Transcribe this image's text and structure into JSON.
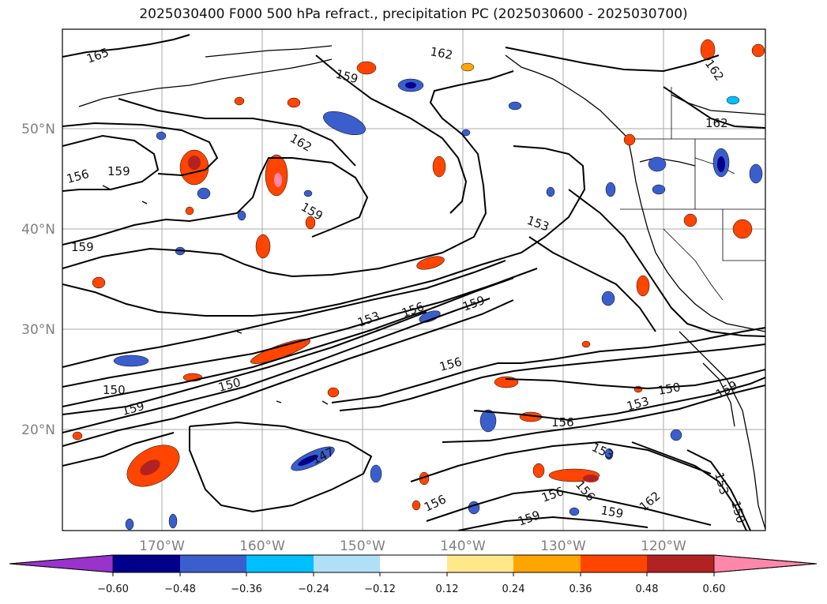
{
  "title": "2025030400 F000 500 hPa refract., precipitation PC (2025030600 - 2025030700)",
  "map": {
    "lat_ticks": [
      "50°N",
      "40°N",
      "30°N",
      "20°N"
    ],
    "lon_ticks": [
      "170°W",
      "160°W",
      "150°W",
      "140°W",
      "130°W",
      "120°W"
    ],
    "contour_labels": [
      "165",
      "162",
      "159",
      "162",
      "162",
      "156",
      "159",
      "162",
      "159",
      "153",
      "153",
      "156",
      "159",
      "150",
      "150",
      "159",
      "156",
      "147",
      "156",
      "150",
      "153",
      "159",
      "153",
      "156",
      "159",
      "156",
      "159",
      "162",
      "159",
      "153",
      "156",
      "150"
    ]
  },
  "colorbar": {
    "labels": [
      "−0.60",
      "−0.48",
      "−0.36",
      "−0.24",
      "−0.12",
      "0.12",
      "0.24",
      "0.36",
      "0.48",
      "0.60"
    ],
    "colors": [
      "#9933cc",
      "#00008b",
      "#3a5fcd",
      "#00bfff",
      "#b0e0f8",
      "#ffffff",
      "#ffe88a",
      "#ffa500",
      "#ff4500",
      "#b22222",
      "#ff88aa"
    ]
  }
}
